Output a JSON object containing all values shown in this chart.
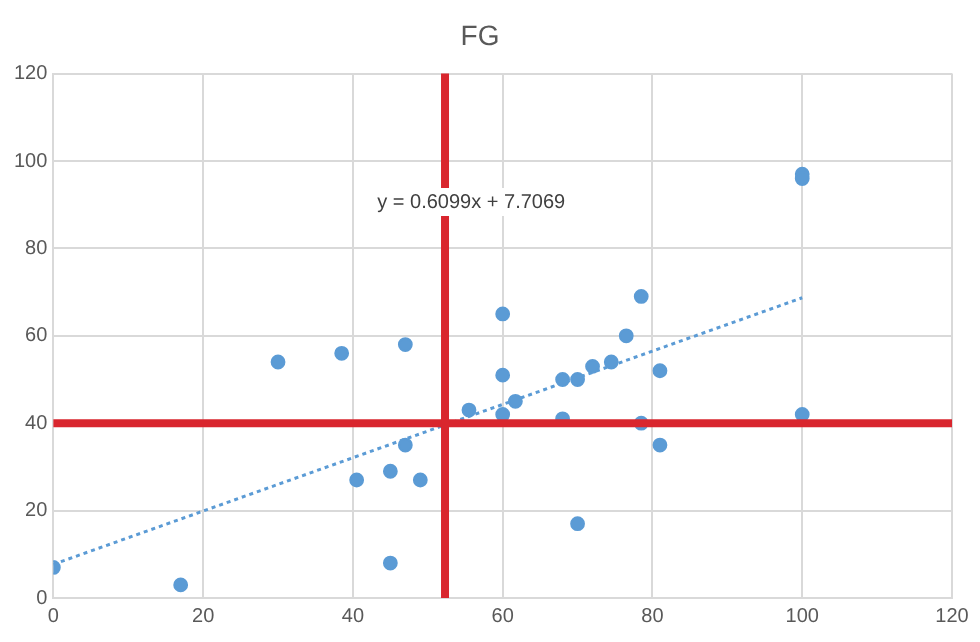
{
  "chart_data": {
    "type": "scatter",
    "title": "FG",
    "grid": true,
    "legend": false,
    "marker": "circle",
    "xlim": [
      0,
      120
    ],
    "xticks": [
      0,
      20,
      40,
      60,
      80,
      100,
      120
    ],
    "ylim": [
      0,
      120
    ],
    "yticks": [
      0,
      20,
      40,
      60,
      80,
      100,
      120
    ],
    "series": [
      {
        "color": "#5b9bd5",
        "x": [
          0,
          17,
          30,
          38.5,
          47,
          40.5,
          45,
          47,
          49,
          45,
          55.5,
          60,
          60,
          60,
          61.7,
          68,
          70,
          68,
          72,
          74.5,
          76.5,
          78.5,
          81,
          81,
          78.5,
          70,
          100,
          100,
          100
        ],
        "values": [
          7,
          3,
          54,
          56,
          58,
          27,
          29,
          35,
          27,
          8,
          43,
          65,
          51,
          42,
          45,
          50,
          50,
          41,
          53,
          54,
          60,
          69,
          52,
          35,
          40,
          17,
          97,
          96,
          42
        ]
      },
      {
        "type": "line",
        "color": "#5b9bd5",
        "line_style": "dotted",
        "marker": "none",
        "x": [
          0,
          100
        ],
        "values": [
          7.7,
          68.7
        ]
      }
    ],
    "ref_lines": [
      {
        "axis": "y",
        "value": 40,
        "color": "#d9262e"
      },
      {
        "axis": "x",
        "value": 52.3,
        "color": "#d9262e"
      }
    ],
    "annotations": [
      "y = 0.6099x + 7.7069"
    ]
  }
}
